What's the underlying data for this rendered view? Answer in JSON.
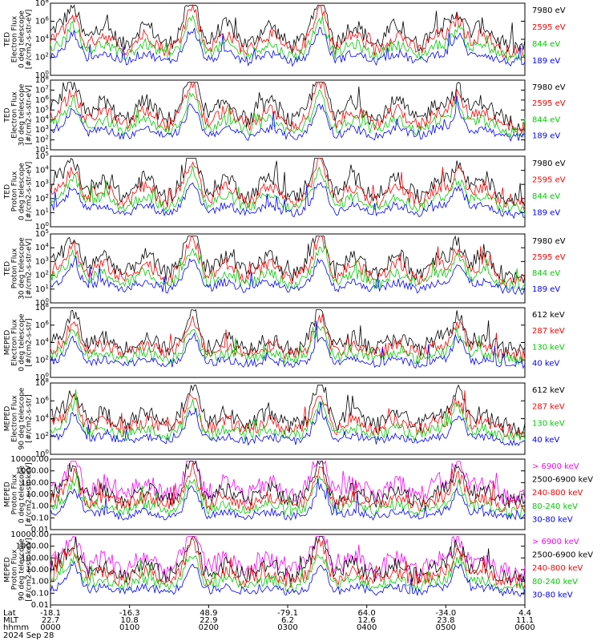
{
  "chart_data": [
    {
      "type": "line",
      "ylabel": [
        "TED",
        "Electron Flux",
        "0 deg telescope",
        "[#/cm2-s-str-eV]"
      ],
      "ylim": [
        1,
        100000000
      ],
      "yscale": "log",
      "ytick_labels": [
        "10^0",
        "10^2",
        "10^4",
        "10^6",
        "10^8"
      ],
      "series": [
        {
          "name": "7980 eV",
          "color": "#000000"
        },
        {
          "name": "2595 eV",
          "color": "#ff0000"
        },
        {
          "name": "844 eV",
          "color": "#00cc00"
        },
        {
          "name": "189 eV",
          "color": "#0000ff"
        }
      ]
    },
    {
      "type": "line",
      "ylabel": [
        "TED",
        "Electron Flux",
        "30 deg telescope",
        "[#/cm2-s-str-eV]"
      ],
      "ylim": [
        1,
        100000000
      ],
      "yscale": "log",
      "ytick_labels": [
        "10^1",
        "10^2",
        "10^3",
        "10^4",
        "10^5",
        "10^6",
        "10^7",
        "10^8"
      ],
      "series": [
        {
          "name": "7980 eV",
          "color": "#000000"
        },
        {
          "name": "2595 eV",
          "color": "#ff0000"
        },
        {
          "name": "844 eV",
          "color": "#00cc00"
        },
        {
          "name": "189 eV",
          "color": "#0000ff"
        }
      ]
    },
    {
      "type": "line",
      "ylabel": [
        "TED",
        "Proton Flux",
        "0 deg telescope",
        "[#/cm2-s-str-eV]"
      ],
      "ylim": [
        1,
        100000
      ],
      "yscale": "log",
      "ytick_labels": [
        "10^0",
        "10^1",
        "10^2",
        "10^3",
        "10^4",
        "10^5"
      ],
      "series": [
        {
          "name": "7980 eV",
          "color": "#000000"
        },
        {
          "name": "2595 eV",
          "color": "#ff0000"
        },
        {
          "name": "844 eV",
          "color": "#00cc00"
        },
        {
          "name": "189 eV",
          "color": "#0000ff"
        }
      ]
    },
    {
      "type": "line",
      "ylabel": [
        "TED",
        "Proton Flux",
        "30 deg telescope",
        "[#/cm2-s-str-eV]"
      ],
      "ylim": [
        1,
        100000
      ],
      "yscale": "log",
      "ytick_labels": [
        "10^0",
        "10^1",
        "10^2",
        "10^3",
        "10^4",
        "10^5"
      ],
      "series": [
        {
          "name": "7980 eV",
          "color": "#000000"
        },
        {
          "name": "2595 eV",
          "color": "#ff0000"
        },
        {
          "name": "844 eV",
          "color": "#00cc00"
        },
        {
          "name": "189 eV",
          "color": "#0000ff"
        }
      ]
    },
    {
      "type": "line",
      "ylabel": [
        "MEPED",
        "Electron Flux",
        "0 deg telescope",
        "[#/cm2-s-str]"
      ],
      "ylim": [
        1,
        100000000
      ],
      "yscale": "log",
      "ytick_labels": [
        "10^0",
        "10^2",
        "10^4",
        "10^6",
        "10^8"
      ],
      "series": [
        {
          "name": "612 keV",
          "color": "#000000"
        },
        {
          "name": "287 keV",
          "color": "#ff0000"
        },
        {
          "name": "130 keV",
          "color": "#00cc00"
        },
        {
          "name": "40 keV",
          "color": "#0000ff"
        }
      ]
    },
    {
      "type": "line",
      "ylabel": [
        "MEPED",
        "Electron Flux",
        "90 deg telescope",
        "[#/cm2-s-str]"
      ],
      "ylim": [
        1,
        100000000
      ],
      "yscale": "log",
      "ytick_labels": [
        "10^0",
        "10^2",
        "10^4",
        "10^6",
        "10^8"
      ],
      "series": [
        {
          "name": "612 keV",
          "color": "#000000"
        },
        {
          "name": "287 keV",
          "color": "#ff0000"
        },
        {
          "name": "130 keV",
          "color": "#00cc00"
        },
        {
          "name": "40 keV",
          "color": "#0000ff"
        }
      ]
    },
    {
      "type": "line",
      "ylabel": [
        "MEPED",
        "Proton Flux",
        "0 deg telescope",
        "[#/cm2-s-str-keV]"
      ],
      "ylim": [
        0.01,
        10000
      ],
      "yscale": "log",
      "ytick_labels": [
        "10000.00",
        "1000.00",
        "100.00",
        "10.00",
        "1.00",
        "0.10",
        "0.01"
      ],
      "series": [
        {
          "name": "> 6900 keV",
          "color": "#ff00ff"
        },
        {
          "name": "2500-6900 keV",
          "color": "#000000"
        },
        {
          "name": "240-800 keV",
          "color": "#ff0000"
        },
        {
          "name": "80-240 keV",
          "color": "#00cc00"
        },
        {
          "name": "30-80 keV",
          "color": "#0000ff"
        }
      ]
    },
    {
      "type": "line",
      "ylabel": [
        "MEPED",
        "Proton Flux",
        "90 deg telescope",
        "[#/cm2-s-str-keV]"
      ],
      "ylim": [
        0.01,
        10000
      ],
      "yscale": "log",
      "ytick_labels": [
        "10000.00",
        "1000.00",
        "100.00",
        "10.00",
        "1.00",
        "0.10",
        "0.01"
      ],
      "series": [
        {
          "name": "> 6900 keV",
          "color": "#ff00ff"
        },
        {
          "name": "2500-6900 keV",
          "color": "#000000"
        },
        {
          "name": "240-800 keV",
          "color": "#ff0000"
        },
        {
          "name": "80-240 keV",
          "color": "#00cc00"
        },
        {
          "name": "30-80 keV",
          "color": "#0000ff"
        }
      ]
    }
  ],
  "xaxis": {
    "row_labels": [
      "Lat",
      "MLT",
      "hhmm",
      "2024 Sep 28"
    ],
    "ticks": [
      {
        "lat": "-18.1",
        "mlt": "22.7",
        "hhmm": "0000"
      },
      {
        "lat": "-16.3",
        "mlt": "10.8",
        "hhmm": "0100"
      },
      {
        "lat": "48.9",
        "mlt": "22.9",
        "hhmm": "0200"
      },
      {
        "lat": "-79.1",
        "mlt": "6.2",
        "hhmm": "0300"
      },
      {
        "lat": "64.0",
        "mlt": "12.6",
        "hhmm": "0400"
      },
      {
        "lat": "-34.0",
        "mlt": "23.8",
        "hhmm": "0500"
      },
      {
        "lat": "4.4",
        "mlt": "11.1",
        "hhmm": "0600"
      }
    ]
  }
}
